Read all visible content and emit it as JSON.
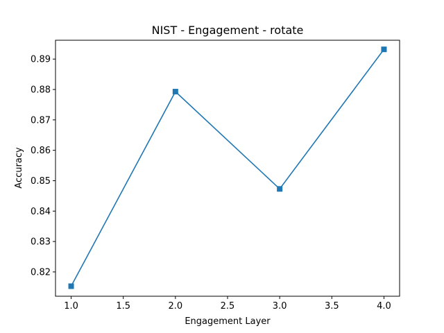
{
  "chart_data": {
    "type": "line",
    "title": "NIST - Engagement - rotate",
    "xlabel": "Engagement Layer",
    "ylabel": "Accuracy",
    "xlim": [
      0.85,
      4.15
    ],
    "ylim": [
      0.812,
      0.8962
    ],
    "xticks": [
      1.0,
      1.5,
      2.0,
      2.5,
      3.0,
      3.5,
      4.0
    ],
    "xtick_labels": [
      "1.0",
      "1.5",
      "2.0",
      "2.5",
      "3.0",
      "3.5",
      "4.0"
    ],
    "yticks": [
      0.82,
      0.83,
      0.84,
      0.85,
      0.86,
      0.87,
      0.88,
      0.89
    ],
    "ytick_labels": [
      "0.82",
      "0.83",
      "0.84",
      "0.85",
      "0.86",
      "0.87",
      "0.88",
      "0.89"
    ],
    "grid": false,
    "series": [
      {
        "color": "#1f77b4",
        "marker": "square",
        "x": [
          1.0,
          2.0,
          3.0,
          4.0
        ],
        "y": [
          0.8153,
          0.8793,
          0.8473,
          0.8932
        ]
      }
    ]
  }
}
